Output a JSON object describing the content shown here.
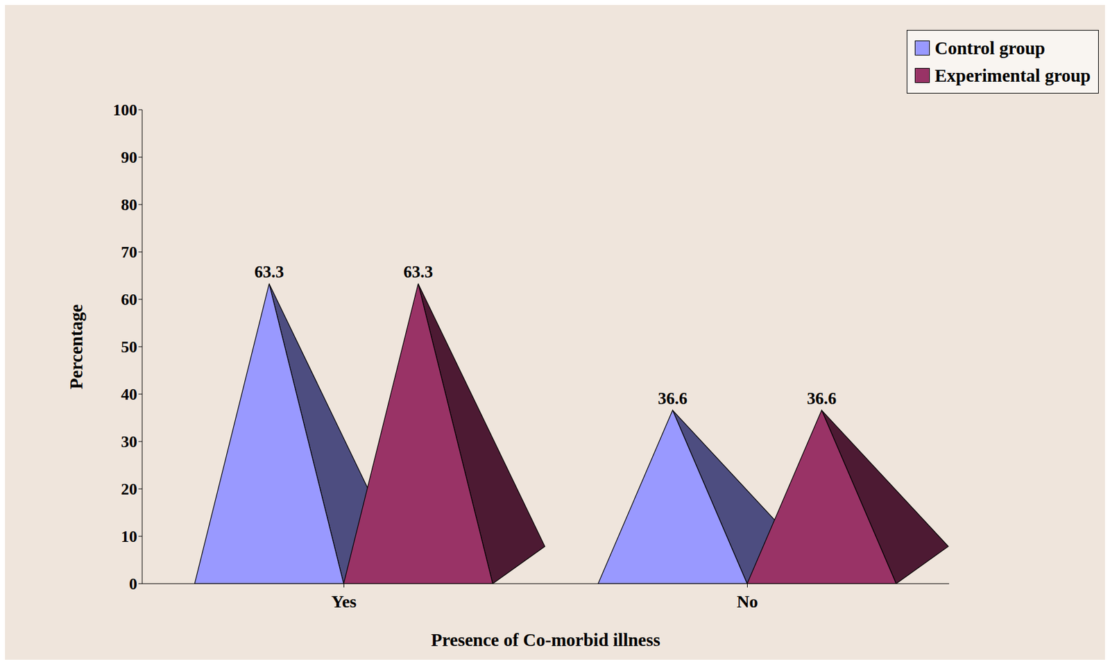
{
  "chart_data": {
    "type": "bar",
    "categories": [
      "Yes",
      "No"
    ],
    "series": [
      {
        "name": "Control group",
        "color": "#9999ff",
        "values": [
          63.3,
          36.6
        ]
      },
      {
        "name": "Experimental group",
        "color": "#993366",
        "values": [
          63.3,
          36.6
        ]
      }
    ],
    "ylim": [
      0,
      100
    ],
    "yticks": [
      0,
      10,
      20,
      30,
      40,
      50,
      60,
      70,
      80,
      90,
      100
    ],
    "x_label": "Presence of Co-morbid illness",
    "y_label": "Percentage",
    "data_labels": true,
    "legend": "top-right",
    "grid": false
  }
}
